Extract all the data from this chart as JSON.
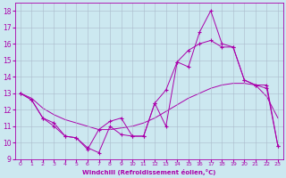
{
  "xlabel": "Windchill (Refroidissement éolien,°C)",
  "x_ticks": [
    0,
    1,
    2,
    3,
    4,
    5,
    6,
    7,
    8,
    9,
    10,
    11,
    12,
    13,
    14,
    15,
    16,
    17,
    18,
    19,
    20,
    21,
    22,
    23
  ],
  "ylim": [
    9,
    18.5
  ],
  "yticks": [
    9,
    10,
    11,
    12,
    13,
    14,
    15,
    16,
    17,
    18
  ],
  "xlim": [
    -0.5,
    23.5
  ],
  "bg_color": "#cce8f0",
  "line_color": "#aa00aa",
  "grid_color": "#aabbcc",
  "line1_x": [
    0,
    1,
    2,
    3,
    4,
    5,
    6,
    7,
    8,
    9,
    10,
    11,
    12,
    13,
    14,
    15,
    16,
    17,
    18,
    19,
    20,
    21,
    22,
    23
  ],
  "line1_y": [
    13.0,
    12.6,
    11.5,
    11.2,
    10.4,
    10.3,
    9.7,
    9.4,
    11.0,
    10.5,
    10.4,
    10.4,
    12.4,
    11.0,
    14.9,
    14.6,
    16.7,
    18.0,
    16.0,
    15.8,
    13.8,
    13.5,
    13.5,
    9.8
  ],
  "line2_x": [
    0,
    1,
    2,
    3,
    4,
    5,
    6,
    7,
    8,
    9,
    10,
    11,
    12,
    13,
    14,
    15,
    16,
    17,
    18,
    19,
    20,
    21,
    22,
    23
  ],
  "line2_y": [
    13.0,
    12.6,
    11.5,
    11.0,
    10.4,
    10.3,
    9.6,
    10.8,
    11.3,
    11.5,
    10.4,
    10.4,
    12.4,
    13.2,
    14.9,
    15.6,
    16.0,
    16.2,
    15.8,
    15.8,
    13.8,
    13.5,
    13.3,
    9.8
  ],
  "line3_x": [
    0,
    1,
    2,
    3,
    4,
    5,
    6,
    7,
    8,
    9,
    10,
    11,
    12,
    13,
    14,
    15,
    16,
    17,
    18,
    19,
    20,
    21,
    22,
    23
  ],
  "line3_y": [
    13.0,
    12.7,
    12.1,
    11.7,
    11.4,
    11.2,
    11.0,
    10.8,
    10.8,
    10.9,
    11.0,
    11.2,
    11.5,
    11.9,
    12.3,
    12.7,
    13.0,
    13.3,
    13.5,
    13.6,
    13.6,
    13.5,
    12.8,
    11.5
  ]
}
